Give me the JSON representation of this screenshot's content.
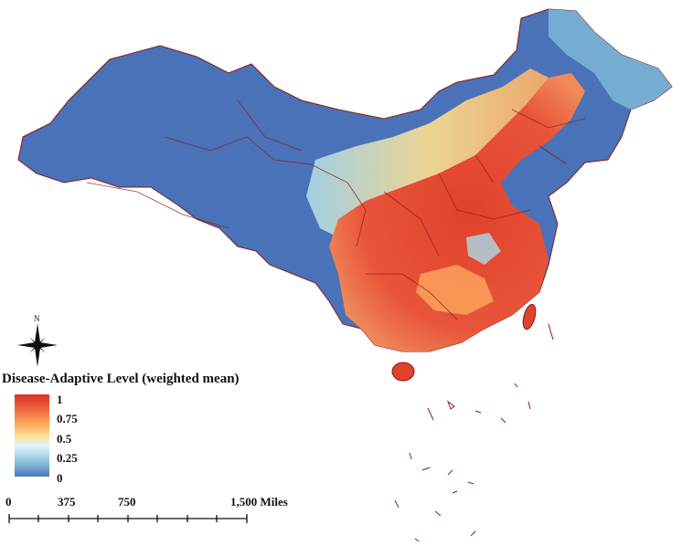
{
  "legend": {
    "title": "Disease-Adaptive Level (weighted mean)",
    "ticks": [
      "1",
      "0.75",
      "0.5",
      "0.25",
      "0"
    ],
    "ramp_colors": [
      "#d73027",
      "#f46d43",
      "#fdae61",
      "#fee090",
      "#e0f3f8",
      "#abd9e9",
      "#74add1",
      "#4a72b8"
    ]
  },
  "north_arrow": {
    "label": "N",
    "icon": "north-arrow-icon"
  },
  "scale_bar": {
    "labels": [
      "0",
      "375",
      "750",
      "1,500 Miles"
    ]
  },
  "colors": {
    "low": "#4a72b8",
    "mid": "#fee090",
    "high": "#d73027",
    "boundary": "#8b1a1a"
  }
}
